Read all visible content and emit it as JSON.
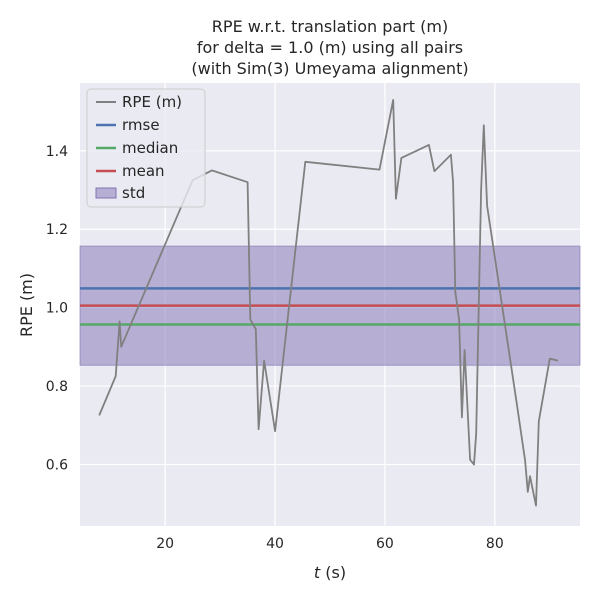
{
  "chart_data": {
    "type": "line",
    "title": [
      "RPE w.r.t. translation part (m)",
      "for delta = 1.0 (m) using all pairs",
      "(with Sim(3) Umeyama alignment)"
    ],
    "xlabel_var": "t",
    "xlabel_unit": " (s)",
    "ylabel": "RPE (m)",
    "xlim": [
      4.5,
      95.5
    ],
    "ylim": [
      0.443,
      1.573
    ],
    "xticks": [
      20,
      40,
      60,
      80
    ],
    "yticks": [
      0.6,
      0.8,
      1.0,
      1.2,
      1.4
    ],
    "ytick_labels": [
      "0.6",
      "0.8",
      "1.0",
      "1.2",
      "1.4"
    ],
    "grid": true,
    "legend_position": "upper-left",
    "series": [
      {
        "name": "RPE (m)",
        "color": "#808080",
        "x": [
          8.0,
          11.0,
          11.7,
          12.0,
          25.0,
          28.5,
          35.0,
          35.5,
          36.5,
          37.0,
          38.0,
          40.0,
          45.5,
          59.0,
          61.5,
          62.0,
          63.0,
          68.0,
          69.0,
          72.0,
          72.4,
          72.8,
          73.5,
          74.0,
          74.5,
          75.5,
          76.2,
          76.6,
          77.5,
          78.0,
          78.6,
          84.0,
          85.5,
          86.0,
          86.4,
          87.5,
          88.0,
          90.0,
          91.5
        ],
        "y": [
          0.725,
          0.825,
          0.965,
          0.9,
          1.325,
          1.35,
          1.32,
          0.97,
          0.945,
          0.69,
          0.865,
          0.685,
          1.372,
          1.352,
          1.53,
          1.278,
          1.382,
          1.415,
          1.348,
          1.39,
          1.32,
          1.04,
          0.97,
          0.72,
          0.892,
          0.612,
          0.6,
          0.68,
          1.3,
          1.465,
          1.26,
          0.755,
          0.61,
          0.53,
          0.57,
          0.495,
          0.71,
          0.87,
          0.865
        ]
      }
    ],
    "statistics": [
      {
        "name": "rmse",
        "value": 1.049,
        "color": "#4c72b0"
      },
      {
        "name": "median",
        "value": 0.957,
        "color": "#55a868"
      },
      {
        "name": "mean",
        "value": 1.005,
        "color": "#c44e52"
      }
    ],
    "std_band": {
      "name": "std",
      "low": 0.853,
      "high": 1.157,
      "color": "#8172b3"
    }
  }
}
